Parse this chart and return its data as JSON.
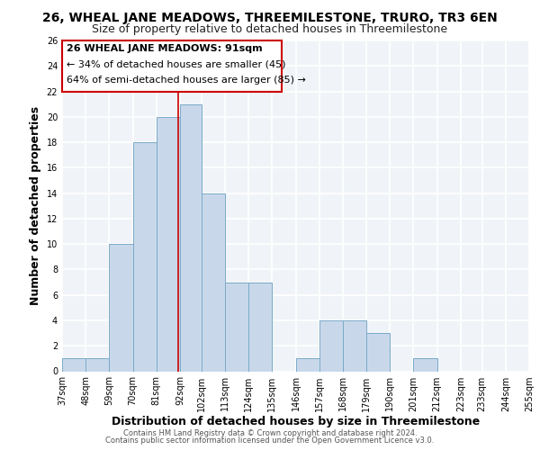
{
  "title": "26, WHEAL JANE MEADOWS, THREEMILESTONE, TRURO, TR3 6EN",
  "subtitle": "Size of property relative to detached houses in Threemilestone",
  "xlabel": "Distribution of detached houses by size in Threemilestone",
  "ylabel": "Number of detached properties",
  "footer_lines": [
    "Contains HM Land Registry data © Crown copyright and database right 2024.",
    "Contains public sector information licensed under the Open Government Licence v3.0."
  ],
  "bin_edges": [
    37,
    48,
    59,
    70,
    81,
    92,
    102,
    113,
    124,
    135,
    146,
    157,
    168,
    179,
    190,
    201,
    212,
    223,
    233,
    244,
    255
  ],
  "bin_labels": [
    "37sqm",
    "48sqm",
    "59sqm",
    "70sqm",
    "81sqm",
    "92sqm",
    "102sqm",
    "113sqm",
    "124sqm",
    "135sqm",
    "146sqm",
    "157sqm",
    "168sqm",
    "179sqm",
    "190sqm",
    "201sqm",
    "212sqm",
    "223sqm",
    "233sqm",
    "244sqm",
    "255sqm"
  ],
  "counts": [
    1,
    1,
    10,
    18,
    20,
    21,
    14,
    7,
    7,
    0,
    1,
    4,
    4,
    3,
    0,
    1,
    0,
    0,
    0,
    0
  ],
  "bar_color": "#c8d8ea",
  "bar_edge_color": "#7aaac8",
  "vline_x": 91,
  "vline_color": "#cc0000",
  "ylim": [
    0,
    26
  ],
  "yticks": [
    0,
    2,
    4,
    6,
    8,
    10,
    12,
    14,
    16,
    18,
    20,
    22,
    24,
    26
  ],
  "annotation_text_line1": "26 WHEAL JANE MEADOWS: 91sqm",
  "annotation_text_line2": "← 34% of detached houses are smaller (45)",
  "annotation_text_line3": "64% of semi-detached houses are larger (85) →",
  "background_color": "#f0f4f8",
  "grid_color": "#ffffff",
  "title_fontsize": 10,
  "subtitle_fontsize": 9,
  "axis_label_fontsize": 9,
  "tick_fontsize": 7,
  "annotation_fontsize": 8,
  "footer_fontsize": 6
}
